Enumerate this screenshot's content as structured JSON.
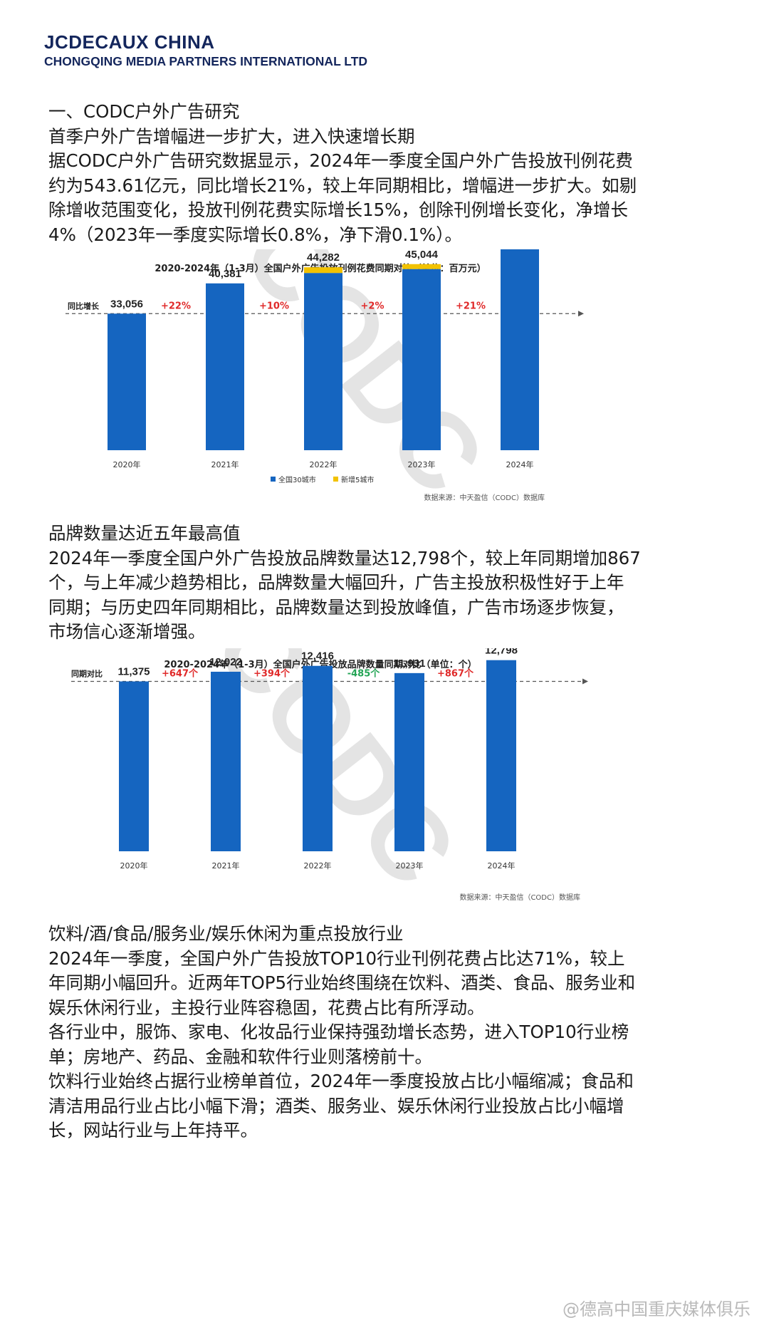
{
  "header": {
    "brand": "JCDECAUX CHINA",
    "company": "CHONGQING MEDIA PARTNERS INTERNATIONAL LTD"
  },
  "section1": {
    "lines": [
      "一、CODC户外广告研究",
      "首季户外广告增幅进一步扩大，进入快速增长期",
      "据CODC户外广告研究数据显示，2024年一季度全国户外广告投放刊例花费",
      "约为543.61亿元，同比增长21%，较上年同期相比，增幅进一步扩大。如剔",
      "除增收范围变化，投放刊例花费实际增长15%，创除刊例增长变化，净增长",
      "4%（2023年一季度实际增长0.8%，净下滑0.1%）。"
    ]
  },
  "section2": {
    "lines": [
      "品牌数量达近五年最高值",
      "2024年一季度全国户外广告投放品牌数量达12,798个，较上年同期增加867",
      "个，与上年减少趋势相比，品牌数量大幅回升，广告主投放积极性好于上年",
      "同期；与历史四年同期相比，品牌数量达到投放峰值，广告市场逐步恢复，",
      "市场信心逐渐增强。"
    ]
  },
  "section3": {
    "lines": [
      "饮料/酒/食品/服务业/娱乐休闲为重点投放行业",
      "2024年一季度，全国户外广告投放TOP10行业刊例花费占比达71%，较上",
      "年同期小幅回升。近两年TOP5行业始终围绕在饮料、酒类、食品、服务业和",
      "娱乐休闲行业，主投行业阵容稳固，花费占比有所浮动。",
      "各行业中，服饰、家电、化妆品行业保持强劲增长态势，进入TOP10行业榜",
      "单；房地产、药品、金融和软件行业则落榜前十。",
      "饮料行业始终占据行业榜单首位，2024年一季度投放占比小幅缩减；食品和",
      "清洁用品行业占比小幅下滑；酒类、服务业、娱乐休闲行业投放占比小幅增",
      "长，网站行业与上年持平。"
    ]
  },
  "watermark": {
    "chart_text": "CODC",
    "caption": "@德高中国重庆媒体俱乐"
  },
  "colors": {
    "brand_navy": "#14265c",
    "bar_blue": "#1565c0",
    "bar_yellow": "#f2c200",
    "growth_red": "#e02a2a",
    "growth_green": "#23a455"
  },
  "chart_data": [
    {
      "type": "bar",
      "title": "2020-2024年（1-3月）全国户外广告投放刊例花费同期对比（单位：百万元）",
      "categories": [
        "2020年",
        "2021年",
        "2022年",
        "2023年",
        "2024年"
      ],
      "series": [
        {
          "name": "全国30城市",
          "values": [
            33056,
            40381,
            42900,
            43850,
            52450
          ]
        },
        {
          "name": "新增5城市",
          "values": [
            0,
            0,
            1382,
            1194,
            1911
          ]
        }
      ],
      "totals": [
        "33,056",
        "40,381",
        "44,282",
        "45,044",
        "54,361"
      ],
      "reference_label": "同比增长",
      "growth_labels": [
        "+22%",
        "+10%",
        "+2%",
        "+21%"
      ],
      "growth_colors": [
        "#e02a2a",
        "#e02a2a",
        "#e02a2a",
        "#e02a2a"
      ],
      "legend": [
        "全国30城市",
        "新增5城市"
      ],
      "legend_position": "bottom-left",
      "source": "数据来源：中天盈信（CODC）数据库",
      "ylim": [
        0,
        60000
      ],
      "grid": false
    },
    {
      "type": "bar",
      "title": "2020-2024年（1-3月）全国户外广告投放品牌数量同期对比（单位：个）",
      "categories": [
        "2020年",
        "2021年",
        "2022年",
        "2023年",
        "2024年"
      ],
      "series": [
        {
          "name": "",
          "values": [
            11375,
            12022,
            12416,
            11931,
            12798
          ]
        }
      ],
      "totals": [
        "11,375",
        "12,022",
        "12,416",
        "11,931",
        "12,798"
      ],
      "reference_label": "同期对比",
      "growth_labels": [
        "+647个",
        "+394个",
        "-485个",
        "+867个"
      ],
      "growth_colors": [
        "#e02a2a",
        "#e02a2a",
        "#23a455",
        "#e02a2a"
      ],
      "legend": [],
      "source": "数据来源：中天盈信（CODC）数据库",
      "ylim": [
        0,
        14500
      ],
      "grid": false
    }
  ]
}
